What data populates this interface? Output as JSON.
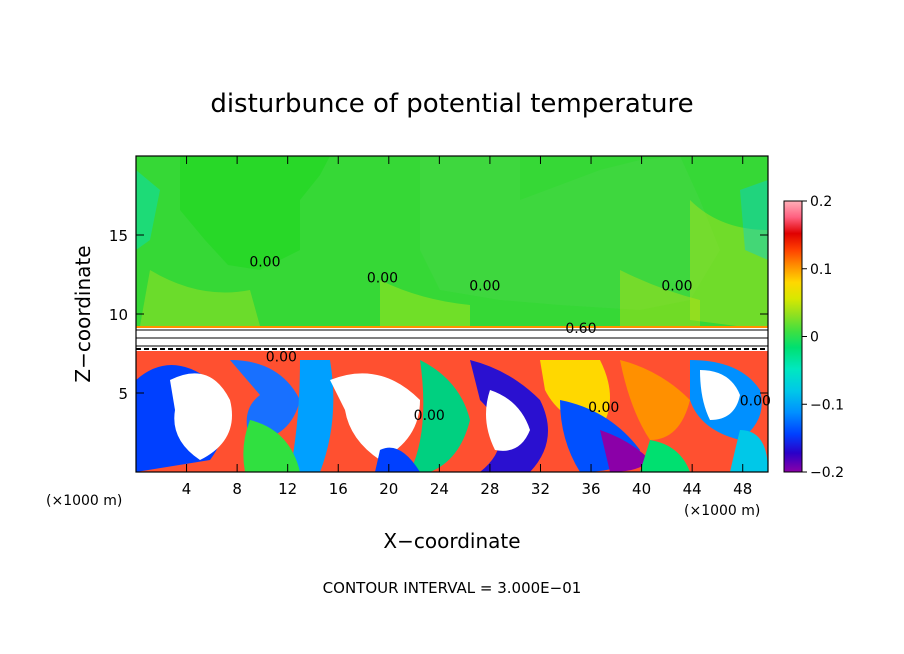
{
  "chart_data": {
    "type": "heatmap",
    "title": "disturbunce of potential temperature",
    "xlabel": "X−coordinate",
    "ylabel": "Z−coordinate",
    "x_unit_left": "(×1000 m)",
    "x_unit_right": "(×1000 m)",
    "xlim": [
      0,
      50
    ],
    "ylim": [
      0,
      20
    ],
    "xticks": [
      4,
      8,
      12,
      16,
      20,
      24,
      28,
      32,
      36,
      40,
      44,
      48
    ],
    "yticks": [
      5,
      10,
      15
    ],
    "colorbar": {
      "vmin": -0.2,
      "vmax": 0.2,
      "ticks": [
        {
          "value": 0.2,
          "label": "0.2"
        },
        {
          "value": 0.1,
          "label": "0.1"
        },
        {
          "value": 0,
          "label": "0"
        },
        {
          "value": -0.1,
          "label": "−0.1"
        },
        {
          "value": -0.2,
          "label": "−0.2"
        }
      ],
      "colors": [
        "#8b00a8",
        "#2a00c8",
        "#0040ff",
        "#0090ff",
        "#00c8e8",
        "#00e8c0",
        "#00e070",
        "#40e040",
        "#90e020",
        "#d8e800",
        "#ffd800",
        "#ff9000",
        "#ff4000",
        "#e00000",
        "#ff6080",
        "#ffb0b8"
      ]
    },
    "contour_labels": [
      {
        "text": "0.00",
        "x": 19.5,
        "z": 12.0
      },
      {
        "text": "0.00",
        "x": 10.2,
        "z": 13.0
      },
      {
        "text": "0.00",
        "x": 27.6,
        "z": 11.5
      },
      {
        "text": "0.00",
        "x": 42.8,
        "z": 11.5
      },
      {
        "text": "0.60",
        "x": 35.2,
        "z": 8.8
      },
      {
        "text": "0.00",
        "x": 11.5,
        "z": 7.0
      },
      {
        "text": "0.00",
        "x": 23.2,
        "z": 3.3
      },
      {
        "text": "0.00",
        "x": 37.0,
        "z": 3.8
      },
      {
        "text": "0.00",
        "x": 49.0,
        "z": 4.2
      }
    ],
    "footer": "CONTOUR INTERVAL = 3.000E−01"
  }
}
